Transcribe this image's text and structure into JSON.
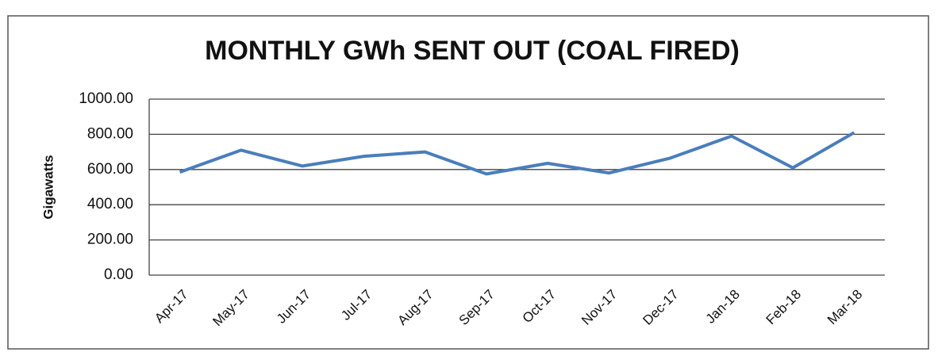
{
  "chart_data": {
    "type": "line",
    "title": "MONTHLY GWh SENT OUT (COAL FIRED)",
    "y_label": "Gigawatts",
    "categories": [
      "Apr-17",
      "May-17",
      "Jun-17",
      "Jul-17",
      "Aug-17",
      "Sep-17",
      "Oct-17",
      "Nov-17",
      "Dec-17",
      "Jan-18",
      "Feb-18",
      "Mar-18"
    ],
    "values": [
      585,
      710,
      620,
      675,
      700,
      575,
      635,
      580,
      665,
      790,
      610,
      810
    ],
    "color": "#4a7ebb",
    "ylim": [
      0,
      1000
    ],
    "yticks": [
      {
        "value": 0,
        "label": "0.00"
      },
      {
        "value": 200,
        "label": "200.00"
      },
      {
        "value": 400,
        "label": "400.00"
      },
      {
        "value": 600,
        "label": "600.00"
      },
      {
        "value": 800,
        "label": "800.00"
      },
      {
        "value": 1000,
        "label": "1000.00"
      }
    ],
    "grid": true
  }
}
